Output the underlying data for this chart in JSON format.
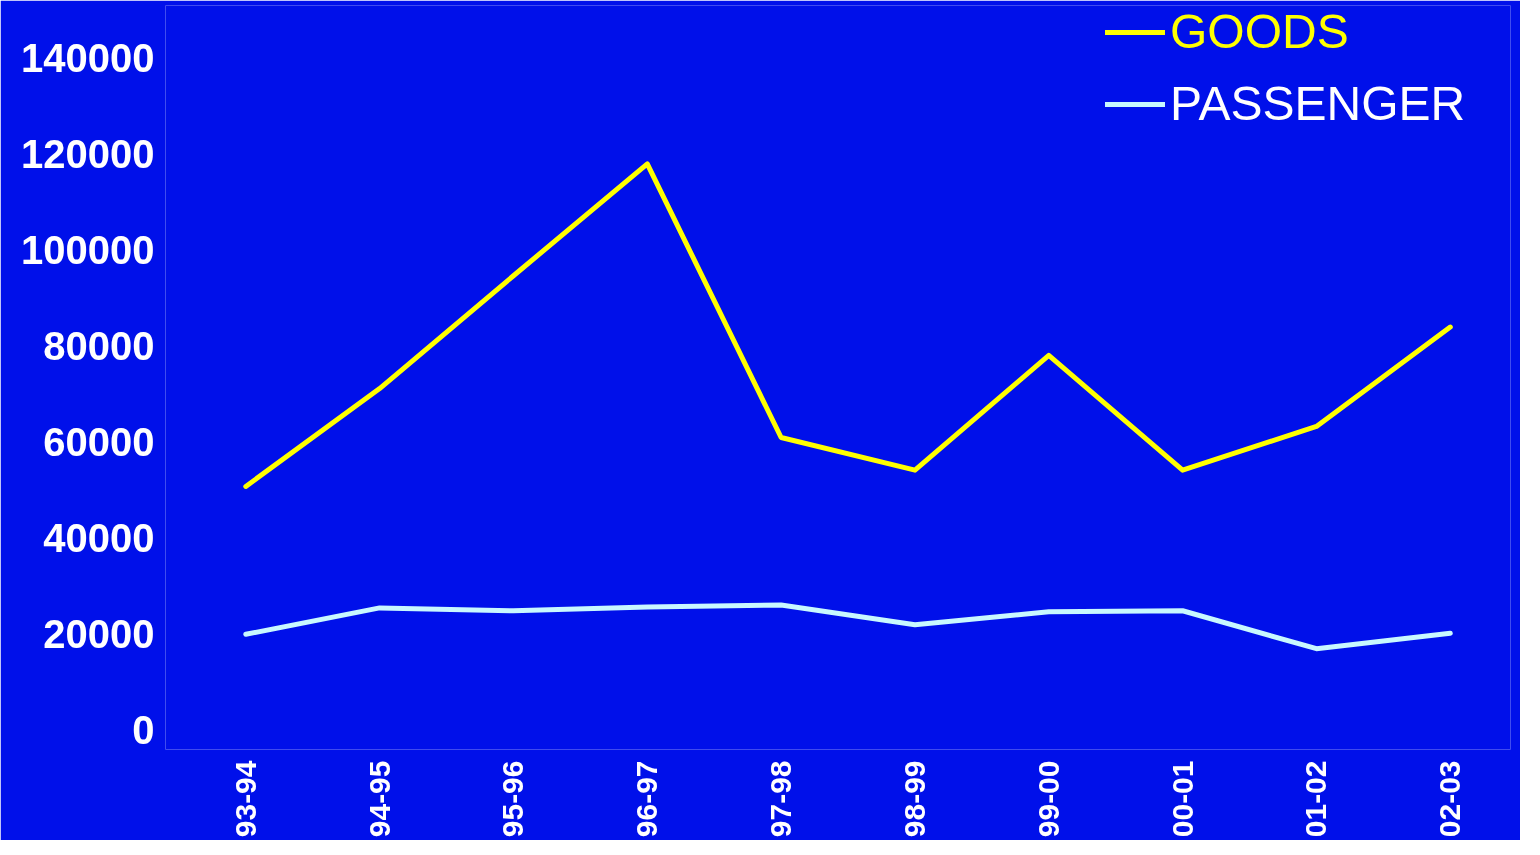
{
  "chart_data": {
    "type": "line",
    "categories": [
      "93-94",
      "94-95",
      "95-96",
      "96-97",
      "97-98",
      "98-99",
      "99-00",
      "00-01",
      "01-02",
      "02-03"
    ],
    "ylim": [
      -4000,
      151000
    ],
    "yticks": [
      0,
      20000,
      40000,
      60000,
      80000,
      100000,
      120000,
      140000
    ],
    "grid": false,
    "legend": "top right",
    "marker": "none",
    "line_style": "solid",
    "series": [
      {
        "name": "GOODS",
        "color": "#ffff00",
        "values": [
          50800,
          71200,
          94700,
          118000,
          61000,
          54200,
          78100,
          54200,
          63300,
          84000
        ]
      },
      {
        "name": "PASSENGER",
        "color": "#c8f8ff",
        "values": [
          20000,
          25500,
          24900,
          25700,
          26100,
          22000,
          24700,
          24900,
          17000,
          20200
        ]
      }
    ]
  }
}
